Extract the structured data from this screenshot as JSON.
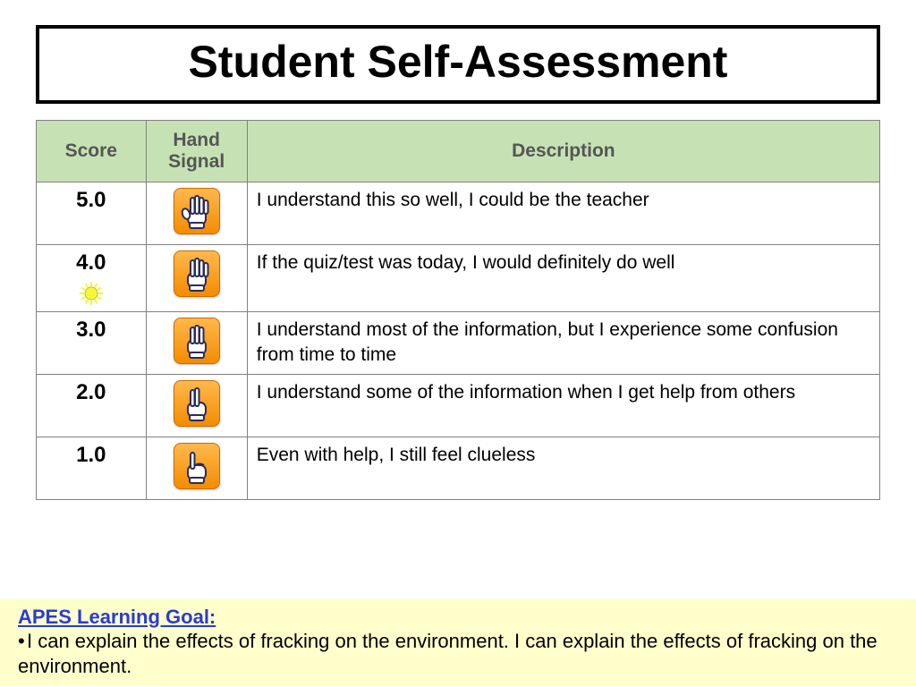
{
  "title": "Student Self-Assessment",
  "table": {
    "header_bg": "#c6e2b5",
    "header_color": "#555555",
    "border_color": "#808080",
    "columns": [
      "Score",
      "Hand Signal",
      "Description"
    ],
    "col_widths_pct": [
      13,
      12,
      75
    ],
    "font_family": "Comic Sans MS",
    "header_fontsize_pt": 16,
    "body_fontsize_pt": 16,
    "rows": [
      {
        "score": "5.0",
        "fingers": 5,
        "has_sun": false,
        "description": "I understand this so well, I could be the teacher"
      },
      {
        "score": "4.0",
        "fingers": 4,
        "has_sun": true,
        "description": "If the quiz/test was today, I would definitely do well"
      },
      {
        "score": "3.0",
        "fingers": 3,
        "has_sun": false,
        "description": "I understand most of the information, but I experience some confusion from time to time"
      },
      {
        "score": "2.0",
        "fingers": 2,
        "has_sun": false,
        "description": "I understand some of the information when I get help from others"
      },
      {
        "score": "1.0",
        "fingers": 1,
        "has_sun": false,
        "description": "Even with help, I still feel clueless"
      }
    ]
  },
  "hand_icon": {
    "tile_bg_top": "#ffb84d",
    "tile_bg_bottom": "#f48c00",
    "tile_border": "#c96e00",
    "glove_fill": "#ffffff",
    "glove_stroke": "#2b2b5a"
  },
  "sun_icon": {
    "fill": "#f7f73a",
    "stroke": "#bdbd20"
  },
  "goal": {
    "bg": "#ffffcc",
    "title_color": "#2a3bd6",
    "title": "APES Learning Goal:",
    "text": "I can explain the effects of fracking on the environment. I can explain the effects of fracking on the environment."
  },
  "page_bg": "#ffffff"
}
